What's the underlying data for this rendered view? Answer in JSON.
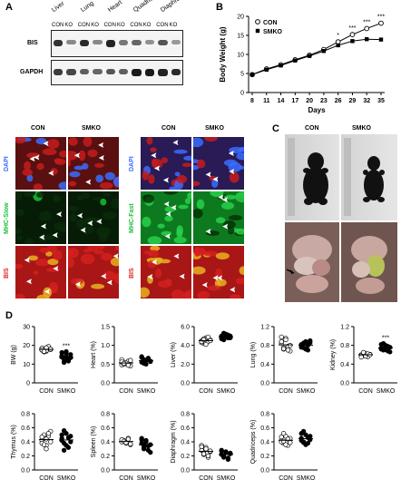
{
  "panel_labels": {
    "a": "A",
    "b": "B",
    "c": "C",
    "d": "D"
  },
  "western": {
    "tissues": [
      "Liver",
      "Lung",
      "Heart",
      "Quadriceps",
      "Diaphragm"
    ],
    "lane_con": "CON",
    "lane_ko": "KO",
    "rows": [
      "BIS",
      "GAPDH"
    ]
  },
  "micro": {
    "left_headers": [
      "CON",
      "SMKO"
    ],
    "right_headers": [
      "CON",
      "SMKO"
    ],
    "left_rows": [
      "DAPI",
      "MHC-Slow",
      "BIS"
    ],
    "right_rows": [
      "DAPI",
      "MHC-Fast",
      "BIS"
    ],
    "colors": {
      "dapi": "#3a6cff",
      "mhc": "#18c038",
      "bis": "#e02020"
    }
  },
  "photos": {
    "headers": [
      "CON",
      "SMKO"
    ]
  },
  "chart_data": [
    {
      "type": "line",
      "panel": "B",
      "xlabel": "Days",
      "ylabel": "Body Weight (g)",
      "x": [
        8,
        11,
        14,
        17,
        20,
        23,
        26,
        29,
        32,
        35
      ],
      "ylim": [
        0,
        20
      ],
      "yticks": [
        0,
        5,
        10,
        15,
        20
      ],
      "series": [
        {
          "name": "CON",
          "values": [
            4.7,
            6.2,
            7.3,
            8.6,
            9.8,
            11.3,
            13.3,
            15.2,
            16.8,
            18.2
          ]
        },
        {
          "name": "SMKO",
          "values": [
            4.7,
            6.0,
            7.1,
            8.4,
            9.6,
            10.9,
            12.4,
            13.5,
            14.0,
            13.9
          ]
        }
      ],
      "significance": [
        {
          "x": 26,
          "label": "*"
        },
        {
          "x": 29,
          "label": "***"
        },
        {
          "x": 32,
          "label": "***"
        },
        {
          "x": 35,
          "label": "***"
        }
      ]
    },
    {
      "type": "scatter",
      "panel": "D",
      "categories": [
        "CON",
        "SMKO"
      ],
      "ylabel": "BW (g)",
      "yticks": [
        "0",
        "10",
        "20",
        "30"
      ],
      "ylim": [
        0,
        30
      ],
      "series": [
        {
          "name": "CON",
          "values": [
            17.5,
            18.2,
            16.9,
            19.0,
            17.8,
            18.5,
            16.5,
            17.2,
            19.4,
            18.0,
            17.6,
            16.8,
            18.8
          ]
        },
        {
          "name": "SMKO",
          "values": [
            14.5,
            12.8,
            15.9,
            11.6,
            13.4,
            16.2,
            10.9,
            14.0,
            12.2,
            15.1,
            13.7,
            11.4,
            16.7,
            12.6
          ]
        }
      ],
      "annotation": "***"
    },
    {
      "type": "scatter",
      "panel": "D",
      "categories": [
        "CON",
        "SMKO"
      ],
      "ylabel": "Heart (%)",
      "yticks": [
        "0.0",
        "0.5",
        "1.0",
        "1.5"
      ],
      "ylim": [
        0,
        1.5
      ],
      "series": [
        {
          "name": "CON",
          "values": [
            0.48,
            0.55,
            0.51,
            0.58,
            0.45,
            0.62,
            0.5,
            0.53,
            0.47,
            0.6,
            0.56,
            0.52
          ]
        },
        {
          "name": "SMKO",
          "values": [
            0.55,
            0.62,
            0.5,
            0.66,
            0.58,
            0.7,
            0.52,
            0.6,
            0.64,
            0.57,
            0.68,
            0.54
          ]
        }
      ]
    },
    {
      "type": "scatter",
      "panel": "D",
      "categories": [
        "CON",
        "SMKO"
      ],
      "ylabel": "Liver (%)",
      "yticks": [
        "0.0",
        "2.0",
        "4.0",
        "6.0"
      ],
      "ylim": [
        0,
        6
      ],
      "series": [
        {
          "name": "CON",
          "values": [
            4.5,
            4.2,
            4.8,
            4.4,
            4.6,
            4.3,
            4.7,
            4.1,
            4.9,
            4.5,
            4.4,
            4.6
          ]
        },
        {
          "name": "SMKO",
          "values": [
            4.9,
            4.6,
            5.2,
            4.8,
            5.0,
            4.7,
            5.3,
            4.9,
            5.1,
            4.8,
            5.0,
            4.6
          ]
        }
      ]
    },
    {
      "type": "scatter",
      "panel": "D",
      "categories": [
        "CON",
        "SMKO"
      ],
      "ylabel": "Lung (%)",
      "yticks": [
        "0.0",
        "0.4",
        "0.8",
        "1.2"
      ],
      "ylim": [
        0,
        1.2
      ],
      "series": [
        {
          "name": "CON",
          "values": [
            0.85,
            0.72,
            0.95,
            0.78,
            0.68,
            0.88,
            0.75,
            0.92,
            0.7,
            0.8,
            0.98,
            0.73
          ]
        },
        {
          "name": "SMKO",
          "values": [
            0.82,
            0.75,
            0.88,
            0.7,
            0.9,
            0.78,
            0.85,
            0.72,
            0.8,
            0.86,
            0.76,
            0.83
          ]
        }
      ]
    },
    {
      "type": "scatter",
      "panel": "D",
      "categories": [
        "CON",
        "SMKO"
      ],
      "ylabel": "Kidney (%)",
      "yticks": [
        "0.0",
        "0.4",
        "0.8",
        "1.2"
      ],
      "ylim": [
        0,
        1.2
      ],
      "series": [
        {
          "name": "CON",
          "values": [
            0.6,
            0.58,
            0.63,
            0.56,
            0.61,
            0.59,
            0.64,
            0.57,
            0.62,
            0.6,
            0.55,
            0.65
          ]
        },
        {
          "name": "SMKO",
          "values": [
            0.74,
            0.7,
            0.8,
            0.68,
            0.76,
            0.72,
            0.84,
            0.71,
            0.78,
            0.66,
            0.82,
            0.73
          ]
        }
      ],
      "annotation": "***"
    },
    {
      "type": "scatter",
      "panel": "D",
      "categories": [
        "CON",
        "SMKO"
      ],
      "ylabel": "Thymus (%)",
      "yticks": [
        "0.0",
        "0.2",
        "0.4",
        "0.6",
        "0.8"
      ],
      "ylim": [
        0,
        0.8
      ],
      "series": [
        {
          "name": "CON",
          "values": [
            0.42,
            0.5,
            0.35,
            0.48,
            0.55,
            0.38,
            0.45,
            0.3,
            0.52,
            0.4,
            0.47,
            0.36,
            0.44
          ]
        },
        {
          "name": "SMKO",
          "values": [
            0.45,
            0.38,
            0.52,
            0.32,
            0.48,
            0.42,
            0.56,
            0.35,
            0.46,
            0.4,
            0.5,
            0.28
          ]
        }
      ]
    },
    {
      "type": "scatter",
      "panel": "D",
      "categories": [
        "CON",
        "SMKO"
      ],
      "ylabel": "Spleen (%)",
      "yticks": [
        "0.0",
        "0.2",
        "0.4",
        "0.6",
        "0.8"
      ],
      "ylim": [
        0,
        0.8
      ],
      "series": [
        {
          "name": "CON",
          "values": [
            0.4,
            0.42,
            0.38,
            0.45,
            0.36,
            0.43,
            0.41,
            0.39,
            0.44,
            0.37
          ]
        },
        {
          "name": "SMKO",
          "values": [
            0.38,
            0.32,
            0.42,
            0.28,
            0.36,
            0.45,
            0.3,
            0.4,
            0.34,
            0.25,
            0.43,
            0.35
          ]
        }
      ]
    },
    {
      "type": "scatter",
      "panel": "D",
      "categories": [
        "CON",
        "SMKO"
      ],
      "ylabel": "Diaphragm (%)",
      "yticks": [
        "0.0",
        "0.2",
        "0.4",
        "0.6",
        "0.8"
      ],
      "ylim": [
        0,
        0.8
      ],
      "series": [
        {
          "name": "CON",
          "values": [
            0.28,
            0.22,
            0.32,
            0.18,
            0.26,
            0.35,
            0.24,
            0.3,
            0.2,
            0.27,
            0.33,
            0.23
          ]
        },
        {
          "name": "SMKO",
          "values": [
            0.22,
            0.18,
            0.26,
            0.15,
            0.24,
            0.28,
            0.2,
            0.25,
            0.17,
            0.23,
            0.27,
            0.19
          ]
        }
      ]
    },
    {
      "type": "scatter",
      "panel": "D",
      "categories": [
        "CON",
        "SMKO"
      ],
      "ylabel": "Quadriceps (%)",
      "yticks": [
        "0.0",
        "0.2",
        "0.4",
        "0.6",
        "0.8"
      ],
      "ylim": [
        0,
        0.8
      ],
      "series": [
        {
          "name": "CON",
          "values": [
            0.42,
            0.38,
            0.48,
            0.35,
            0.45,
            0.4,
            0.52,
            0.36,
            0.44,
            0.39,
            0.47,
            0.41
          ]
        },
        {
          "name": "SMKO",
          "values": [
            0.45,
            0.4,
            0.5,
            0.38,
            0.48,
            0.42,
            0.55,
            0.36,
            0.46,
            0.43,
            0.52,
            0.39
          ]
        }
      ]
    }
  ]
}
